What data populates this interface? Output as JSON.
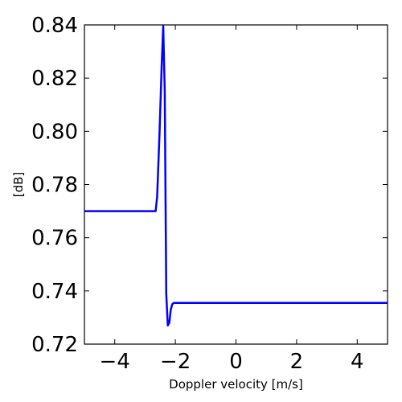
{
  "chart_data": {
    "type": "line",
    "xlabel": "Doppler velocity [m/s]",
    "ylabel": "[dB]",
    "xlim": [
      -5,
      5
    ],
    "ylim": [
      0.72,
      0.84
    ],
    "xticks": [
      -4,
      -2,
      0,
      2,
      4
    ],
    "xtick_labels": [
      "−4",
      "−2",
      "0",
      "2",
      "4"
    ],
    "yticks": [
      0.72,
      0.74,
      0.76,
      0.78,
      0.8,
      0.82,
      0.84
    ],
    "ytick_labels": [
      "0.72",
      "0.74",
      "0.76",
      "0.78",
      "0.80",
      "0.82",
      "0.84"
    ],
    "grid": false,
    "series": [
      {
        "color": "#0000ff",
        "x": [
          -5.0,
          -2.65,
          -2.6,
          -2.52,
          -2.45,
          -2.4,
          -2.35,
          -2.3,
          -2.25,
          -2.2,
          -2.15,
          -2.1,
          -2.05,
          5.0
        ],
        "y": [
          0.77,
          0.77,
          0.7755,
          0.8,
          0.825,
          0.8395,
          0.815,
          0.739,
          0.727,
          0.728,
          0.733,
          0.735,
          0.7355,
          0.7355
        ]
      }
    ]
  }
}
